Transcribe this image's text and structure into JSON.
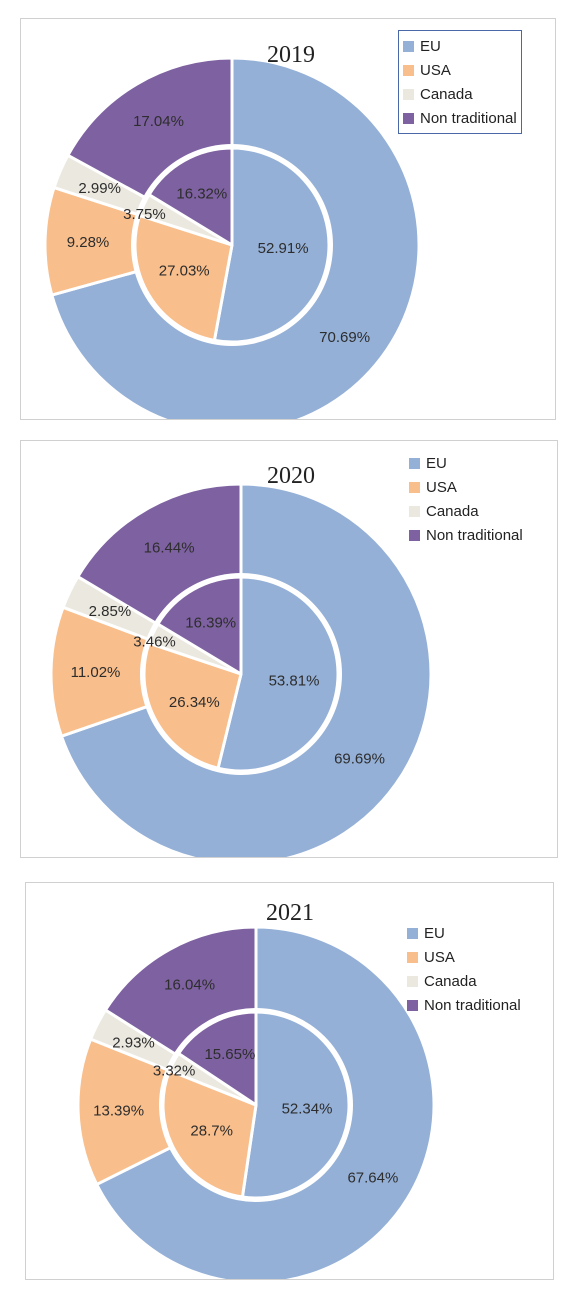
{
  "chart_data": [
    {
      "type": "pie",
      "title": "2019",
      "categories": [
        "EU",
        "USA",
        "Canada",
        "Non traditional"
      ],
      "series": [
        {
          "values": [
            70.69,
            9.28,
            2.99,
            17.04
          ],
          "labels": [
            "70.69%",
            "9.28%",
            "2.99%",
            "17.04%"
          ]
        },
        {
          "values": [
            52.91,
            27.03,
            3.75,
            16.32
          ],
          "labels": [
            "52.91%",
            "27.03%",
            "3.75%",
            "16.32%"
          ]
        }
      ],
      "legend": "top-right",
      "legend_boxed": true
    },
    {
      "type": "pie",
      "title": "2020",
      "categories": [
        "EU",
        "USA",
        "Canada",
        "Non traditional"
      ],
      "series": [
        {
          "values": [
            69.69,
            11.02,
            2.85,
            16.44
          ],
          "labels": [
            "69.69%",
            "11.02%",
            "2.85%",
            "16.44%"
          ]
        },
        {
          "values": [
            53.81,
            26.34,
            3.46,
            16.39
          ],
          "labels": [
            "53.81%",
            "26.34%",
            "3.46%",
            "16.39%"
          ]
        }
      ],
      "legend": "top-right",
      "legend_boxed": false
    },
    {
      "type": "pie",
      "title": "2021",
      "categories": [
        "EU",
        "USA",
        "Canada",
        "Non traditional"
      ],
      "series": [
        {
          "values": [
            67.64,
            13.39,
            2.93,
            16.04
          ],
          "labels": [
            "67.64%",
            "13.39%",
            "2.93%",
            "16.04%"
          ]
        },
        {
          "values": [
            52.34,
            28.7,
            3.32,
            15.65
          ],
          "labels": [
            "52.34%",
            "28.7%",
            "3.32%",
            "15.65%"
          ]
        }
      ],
      "legend": "top-right",
      "legend_boxed": false
    }
  ],
  "colors": [
    "#94b0d7",
    "#f8be8c",
    "#ebe8df",
    "#7e61a1"
  ],
  "icons": [
    "legend-swatch"
  ]
}
